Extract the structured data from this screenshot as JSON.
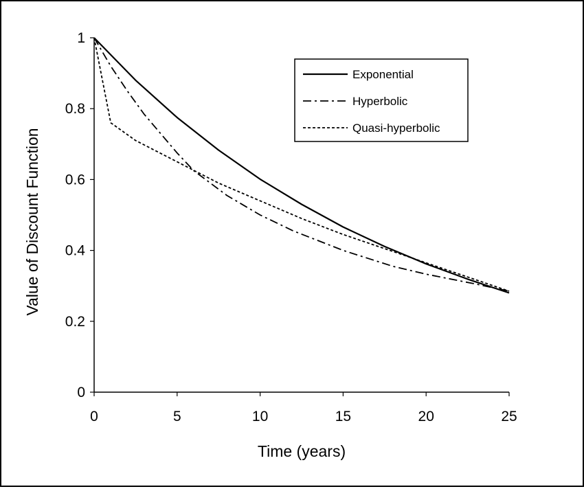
{
  "chart_data": {
    "type": "line",
    "xlabel": "Time (years)",
    "ylabel": "Value of Discount Function",
    "xlim": [
      0,
      25
    ],
    "ylim": [
      0,
      1
    ],
    "xticks": [
      "0",
      "5",
      "10",
      "15",
      "20",
      "25"
    ],
    "yticks": [
      "0",
      "0.2",
      "0.4",
      "0.6",
      "0.8",
      "1"
    ],
    "grid": false,
    "legend_position": "top-right",
    "series": [
      {
        "name": "Exponential",
        "style": "solid",
        "x": [
          0,
          2.5,
          5,
          7.5,
          10,
          12.5,
          15,
          17.5,
          20,
          22.5,
          25
        ],
        "y": [
          1.0,
          0.88,
          0.775,
          0.683,
          0.601,
          0.53,
          0.466,
          0.411,
          0.362,
          0.319,
          0.28
        ]
      },
      {
        "name": "Hyperbolic",
        "style": "dashdot",
        "x": [
          0,
          1,
          2,
          3,
          4,
          5,
          6,
          8,
          10,
          12,
          15,
          18,
          20,
          23,
          25
        ],
        "y": [
          1.0,
          0.92,
          0.85,
          0.785,
          0.73,
          0.675,
          0.625,
          0.555,
          0.5,
          0.455,
          0.4,
          0.355,
          0.333,
          0.305,
          0.285
        ]
      },
      {
        "name": "Quasi-hyperbolic",
        "style": "dashed",
        "x": [
          0,
          1,
          2.5,
          5,
          7.5,
          10,
          12.5,
          15,
          17.5,
          20,
          22.5,
          25
        ],
        "y": [
          1.0,
          0.76,
          0.71,
          0.65,
          0.59,
          0.54,
          0.49,
          0.445,
          0.405,
          0.365,
          0.325,
          0.285
        ]
      }
    ]
  }
}
